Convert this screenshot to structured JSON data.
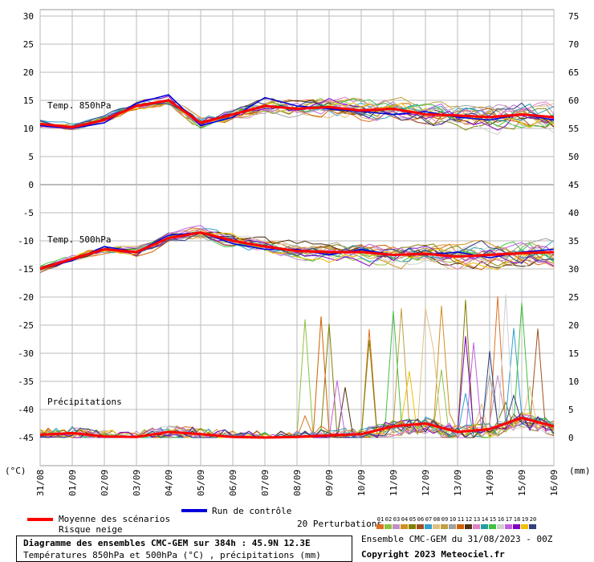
{
  "chart_data": {
    "type": "line",
    "x_ticks": [
      "31/08",
      "01/09",
      "02/09",
      "03/09",
      "04/09",
      "05/09",
      "06/09",
      "07/09",
      "08/09",
      "09/09",
      "10/09",
      "11/09",
      "12/09",
      "13/09",
      "14/09",
      "15/09",
      "16/09"
    ],
    "left_axis": {
      "label": "(°C)",
      "ticks": [
        30,
        25,
        20,
        15,
        10,
        5,
        0,
        -5,
        -10,
        -15,
        -20,
        -25,
        -30,
        -35,
        -40,
        -45
      ],
      "range": [
        -45,
        30
      ]
    },
    "right_axis": {
      "label": "(mm)",
      "ticks": [
        75,
        70,
        65,
        60,
        55,
        50,
        45,
        40,
        35,
        30,
        25,
        20,
        15,
        10,
        5,
        0
      ],
      "range": [
        0,
        75
      ]
    },
    "panel_labels": {
      "t850": "Temp. 850hPa",
      "t500": "Temp. 500hPa",
      "precip": "Précipitations"
    },
    "mean_850": [
      10.8,
      10.2,
      11.5,
      14.0,
      15.0,
      11.0,
      12.5,
      14.0,
      13.5,
      13.8,
      13.2,
      13.5,
      12.5,
      12.3,
      12.0,
      12.5,
      12.0
    ],
    "mean_500": [
      -15.0,
      -13.2,
      -11.5,
      -12.0,
      -9.5,
      -8.5,
      -10.0,
      -11.0,
      -11.8,
      -12.0,
      -12.0,
      -12.5,
      -12.3,
      -12.8,
      -12.5,
      -12.2,
      -12.0
    ],
    "mean_precip": [
      0.5,
      0.8,
      0.2,
      0.1,
      1.0,
      0.6,
      0.1,
      0.0,
      0.1,
      0.4,
      0.6,
      2.0,
      2.5,
      1.0,
      1.5,
      3.5,
      2.0
    ],
    "control_850": [
      10.5,
      10.0,
      11.0,
      14.5,
      16.0,
      10.5,
      12.0,
      15.5,
      14.0,
      13.5,
      13.0,
      12.5,
      13.0,
      12.0,
      11.5,
      12.5,
      11.5
    ],
    "control_500": [
      -15.0,
      -13.5,
      -11.0,
      -12.0,
      -9.0,
      -8.5,
      -10.5,
      -11.5,
      -11.5,
      -12.5,
      -11.5,
      -12.5,
      -12.5,
      -12.0,
      -13.0,
      -12.0,
      -11.5
    ],
    "legend": {
      "mean": "Moyenne des scénarios",
      "snow": "Risque neige",
      "control": "Run de contrôle",
      "perturbations": "20 Perturbations",
      "perturbation_ids": [
        "01",
        "02",
        "03",
        "04",
        "05",
        "06",
        "07",
        "08",
        "09",
        "10",
        "11",
        "12",
        "13",
        "14",
        "15",
        "16",
        "17",
        "18",
        "19",
        "20"
      ]
    },
    "colors": {
      "mean": "#ff0000",
      "control": "#0000dd",
      "perturbations": [
        "#e07020",
        "#90c040",
        "#c090c0",
        "#d09020",
        "#808000",
        "#a05020",
        "#30a0d0",
        "#e0c080",
        "#c0a040",
        "#a0a0a0",
        "#d06000",
        "#503010",
        "#e080c0",
        "#20a0a0",
        "#40c040",
        "#d0d0d0",
        "#c060e0",
        "#8000c0",
        "#f0c000",
        "#304080"
      ]
    },
    "title": "Diagramme des ensembles CMC-GEM sur 384h : 45.9N 12.3E",
    "subtitle": "Températures 850hPa et 500hPa (°C) , précipitations (mm)",
    "run_info": "Ensemble CMC-GEM du 31/08/2023 - 00Z",
    "copyright": "Copyright 2023 Meteociel.fr",
    "grid": true
  }
}
